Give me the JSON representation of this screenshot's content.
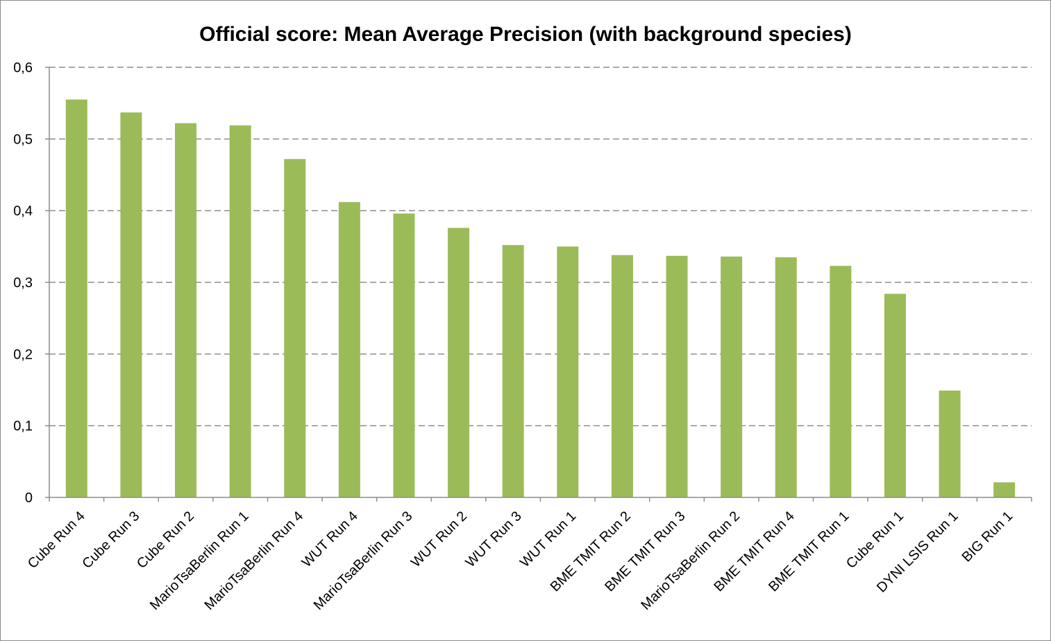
{
  "chart_data": {
    "type": "bar",
    "title": "Official score: Mean Average Precision (with background species)",
    "xlabel": "",
    "ylabel": "",
    "categories": [
      "Cube Run 4",
      "Cube Run 3",
      "Cube Run 2",
      "MarioTsaBerlin Run 1",
      "MarioTsaBerlin Run 4",
      "WUT Run 4",
      "MarioTsaBerlin Run 3",
      "WUT Run 2",
      "WUT Run 3",
      "WUT Run 1",
      "BME TMIT Run 2",
      "BME TMIT Run 3",
      "MarioTsaBerlin Run 2",
      "BME TMIT Run 4",
      "BME TMIT Run 1",
      "Cube Run 1",
      "DYNI LSIS Run 1",
      "BIG Run 1"
    ],
    "values": [
      0.555,
      0.537,
      0.522,
      0.519,
      0.472,
      0.412,
      0.396,
      0.376,
      0.352,
      0.35,
      0.338,
      0.337,
      0.336,
      0.335,
      0.323,
      0.284,
      0.149,
      0.021
    ],
    "ylim": [
      0,
      0.6
    ],
    "yticks": [
      0,
      0.1,
      0.2,
      0.3,
      0.4,
      0.5,
      0.6
    ],
    "ytick_labels": [
      "0",
      "0,1",
      "0,2",
      "0,3",
      "0,4",
      "0,5",
      "0,6"
    ],
    "grid": true,
    "grid_style": "dashed",
    "legend": "none",
    "bar_color": "#9bbb59"
  }
}
